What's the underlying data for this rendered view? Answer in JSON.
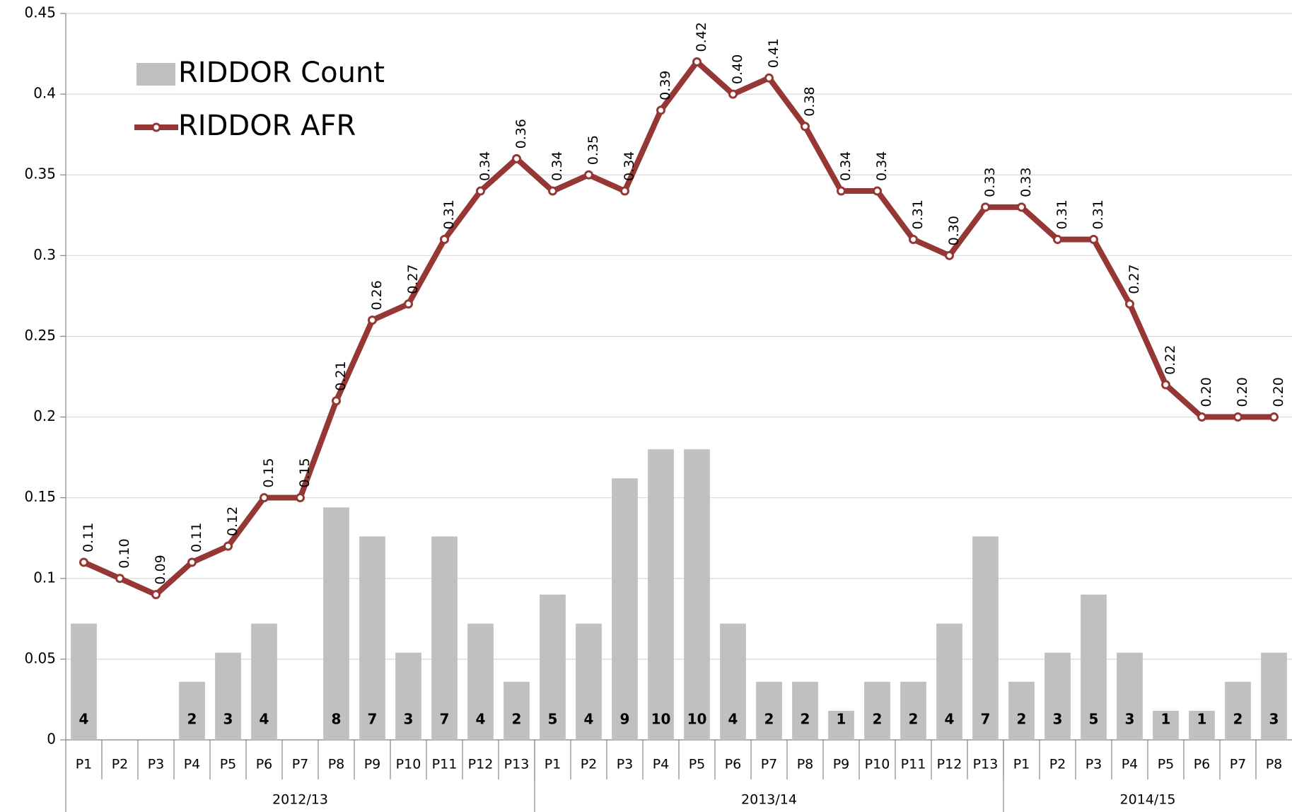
{
  "chart_data": {
    "type": "bar-line",
    "groups": [
      {
        "name": "2012/13",
        "periods": [
          "P1",
          "P2",
          "P3",
          "P4",
          "P5",
          "P6",
          "P7",
          "P8",
          "P9",
          "P10",
          "P11",
          "P12",
          "P13"
        ]
      },
      {
        "name": "2013/14",
        "periods": [
          "P1",
          "P2",
          "P3",
          "P4",
          "P5",
          "P6",
          "P7",
          "P8",
          "P9",
          "P10",
          "P11",
          "P12",
          "P13"
        ]
      },
      {
        "name": "2014/15",
        "periods": [
          "P1",
          "P2",
          "P3",
          "P4",
          "P5",
          "P6",
          "P7",
          "P8"
        ]
      }
    ],
    "ylim": [
      0,
      0.45
    ],
    "yticks": [
      0,
      0.05,
      0.1,
      0.15,
      0.2,
      0.25,
      0.3,
      0.35,
      0.4,
      0.45
    ],
    "y2lim": [
      0,
      25
    ],
    "grid": true,
    "legend": "upper left",
    "series": [
      {
        "name": "RIDDOR Count",
        "type": "bar",
        "axis": "y2",
        "color": "#c0c0c0",
        "values": [
          4,
          null,
          null,
          2,
          3,
          4,
          null,
          8,
          7,
          3,
          7,
          4,
          2,
          5,
          4,
          9,
          10,
          10,
          4,
          2,
          2,
          1,
          2,
          2,
          4,
          7,
          2,
          3,
          5,
          3,
          1,
          1,
          2,
          3
        ]
      },
      {
        "name": "RIDDOR AFR",
        "type": "line",
        "color": "#953735",
        "values": [
          0.11,
          0.1,
          0.09,
          0.11,
          0.12,
          0.15,
          0.15,
          0.21,
          0.26,
          0.27,
          0.31,
          0.34,
          0.36,
          0.34,
          0.35,
          0.34,
          0.39,
          0.42,
          0.4,
          0.41,
          0.38,
          0.34,
          0.34,
          0.31,
          0.3,
          0.33,
          0.33,
          0.31,
          0.31,
          0.27,
          0.22,
          0.2,
          0.2,
          0.2
        ],
        "value_labels": [
          "0.11",
          "0.10",
          "0.09",
          "0.11",
          "0.12",
          "0.15",
          "0.15",
          "0.21",
          "0.26",
          "0.27",
          "0.31",
          "0.34",
          "0.36",
          "0.34",
          "0.35",
          "0.34",
          "0.39",
          "0.42",
          "0.40",
          "0.41",
          "0.38",
          "0.34",
          "0.34",
          "0.31",
          "0.30",
          "0.33",
          "0.33",
          "0.31",
          "0.31",
          "0.27",
          "0.22",
          "0.20",
          "0.20",
          "0.20"
        ]
      }
    ]
  }
}
